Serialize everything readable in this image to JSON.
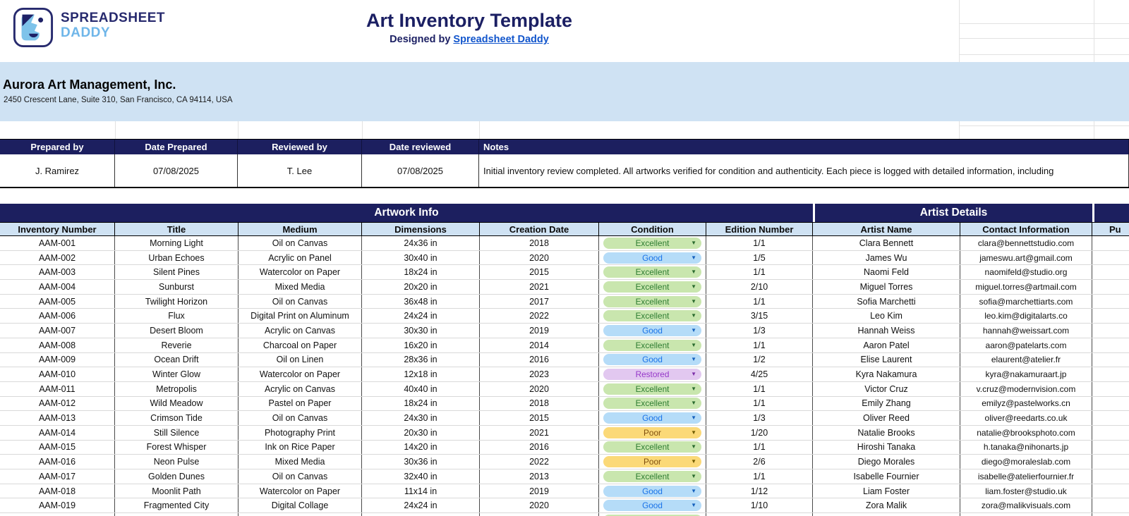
{
  "brand": {
    "line1": "SPREADSHEET",
    "line2": "DADDY",
    "logo_icon": "face-logo-icon"
  },
  "header": {
    "title": "Art Inventory Template",
    "subtitle_prefix": "Designed by ",
    "subtitle_link": "Spreadsheet Daddy"
  },
  "company": {
    "name": "Aurora Art Management, Inc.",
    "address": "2450 Crescent Lane, Suite 310, San Francisco, CA 94114, USA"
  },
  "review": {
    "headers": [
      "Prepared by",
      "Date Prepared",
      "Reviewed by",
      "Date reviewed",
      "Notes"
    ],
    "prepared_by": "J. Ramirez",
    "date_prepared": "07/08/2025",
    "reviewed_by": "T. Lee",
    "date_reviewed": "07/08/2025",
    "notes": "Initial inventory review completed. All artworks verified for condition and authenticity. Each piece is logged with detailed information, including"
  },
  "inventory": {
    "group_headers": [
      "Artwork Info",
      "Artist Details"
    ],
    "columns": [
      "Inventory Number",
      "Title",
      "Medium",
      "Dimensions",
      "Creation Date",
      "Condition",
      "Edition Number",
      "Artist Name",
      "Contact Information",
      "Pu"
    ],
    "condition_colors": {
      "Excellent": {
        "bg": "#c9e6ae",
        "text": "#2e7d32"
      },
      "Good": {
        "bg": "#b5dcf8",
        "text": "#1a73e8"
      },
      "Restored": {
        "bg": "#e2c8f0",
        "text": "#9638c9"
      },
      "Poor": {
        "bg": "#fbd978",
        "text": "#7f4f0f"
      }
    },
    "rows": [
      {
        "inv": "AAM-001",
        "title": "Morning Light",
        "medium": "Oil on Canvas",
        "dims": "24x36 in",
        "created": "2018",
        "condition": "Excellent",
        "edition": "1/1",
        "artist": "Clara Bennett",
        "contact": "clara@bennettstudio.com"
      },
      {
        "inv": "AAM-002",
        "title": "Urban Echoes",
        "medium": "Acrylic on Panel",
        "dims": "30x40 in",
        "created": "2020",
        "condition": "Good",
        "edition": "1/5",
        "artist": "James Wu",
        "contact": "jameswu.art@gmail.com"
      },
      {
        "inv": "AAM-003",
        "title": "Silent Pines",
        "medium": "Watercolor on Paper",
        "dims": "18x24 in",
        "created": "2015",
        "condition": "Excellent",
        "edition": "1/1",
        "artist": "Naomi Feld",
        "contact": "naomifeld@studio.org"
      },
      {
        "inv": "AAM-004",
        "title": "Sunburst",
        "medium": "Mixed Media",
        "dims": "20x20 in",
        "created": "2021",
        "condition": "Excellent",
        "edition": "2/10",
        "artist": "Miguel Torres",
        "contact": "miguel.torres@artmail.com"
      },
      {
        "inv": "AAM-005",
        "title": "Twilight Horizon",
        "medium": "Oil on Canvas",
        "dims": "36x48 in",
        "created": "2017",
        "condition": "Excellent",
        "edition": "1/1",
        "artist": "Sofia Marchetti",
        "contact": "sofia@marchettiarts.com"
      },
      {
        "inv": "AAM-006",
        "title": "Flux",
        "medium": "Digital Print on Aluminum",
        "dims": "24x24 in",
        "created": "2022",
        "condition": "Excellent",
        "edition": "3/15",
        "artist": "Leo Kim",
        "contact": "leo.kim@digitalarts.co"
      },
      {
        "inv": "AAM-007",
        "title": "Desert Bloom",
        "medium": "Acrylic on Canvas",
        "dims": "30x30 in",
        "created": "2019",
        "condition": "Good",
        "edition": "1/3",
        "artist": "Hannah Weiss",
        "contact": "hannah@weissart.com"
      },
      {
        "inv": "AAM-008",
        "title": "Reverie",
        "medium": "Charcoal on Paper",
        "dims": "16x20 in",
        "created": "2014",
        "condition": "Excellent",
        "edition": "1/1",
        "artist": "Aaron Patel",
        "contact": "aaron@patelarts.com"
      },
      {
        "inv": "AAM-009",
        "title": "Ocean Drift",
        "medium": "Oil on Linen",
        "dims": "28x36 in",
        "created": "2016",
        "condition": "Good",
        "edition": "1/2",
        "artist": "Elise Laurent",
        "contact": "elaurent@atelier.fr"
      },
      {
        "inv": "AAM-010",
        "title": "Winter Glow",
        "medium": "Watercolor on Paper",
        "dims": "12x18 in",
        "created": "2023",
        "condition": "Restored",
        "edition": "4/25",
        "artist": "Kyra Nakamura",
        "contact": "kyra@nakamuraart.jp"
      },
      {
        "inv": "AAM-011",
        "title": "Metropolis",
        "medium": "Acrylic on Canvas",
        "dims": "40x40 in",
        "created": "2020",
        "condition": "Excellent",
        "edition": "1/1",
        "artist": "Victor Cruz",
        "contact": "v.cruz@modernvision.com"
      },
      {
        "inv": "AAM-012",
        "title": "Wild Meadow",
        "medium": "Pastel on Paper",
        "dims": "18x24 in",
        "created": "2018",
        "condition": "Excellent",
        "edition": "1/1",
        "artist": "Emily Zhang",
        "contact": "emilyz@pastelworks.cn"
      },
      {
        "inv": "AAM-013",
        "title": "Crimson Tide",
        "medium": "Oil on Canvas",
        "dims": "24x30 in",
        "created": "2015",
        "condition": "Good",
        "edition": "1/3",
        "artist": "Oliver Reed",
        "contact": "oliver@reedarts.co.uk"
      },
      {
        "inv": "AAM-014",
        "title": "Still Silence",
        "medium": "Photography Print",
        "dims": "20x30 in",
        "created": "2021",
        "condition": "Poor",
        "edition": "1/20",
        "artist": "Natalie Brooks",
        "contact": "natalie@brooksphoto.com"
      },
      {
        "inv": "AAM-015",
        "title": "Forest Whisper",
        "medium": "Ink on Rice Paper",
        "dims": "14x20 in",
        "created": "2016",
        "condition": "Excellent",
        "edition": "1/1",
        "artist": "Hiroshi Tanaka",
        "contact": "h.tanaka@nihonarts.jp"
      },
      {
        "inv": "AAM-016",
        "title": "Neon Pulse",
        "medium": "Mixed Media",
        "dims": "30x36 in",
        "created": "2022",
        "condition": "Poor",
        "edition": "2/6",
        "artist": "Diego Morales",
        "contact": "diego@moraleslab.com"
      },
      {
        "inv": "AAM-017",
        "title": "Golden Dunes",
        "medium": "Oil on Canvas",
        "dims": "32x40 in",
        "created": "2013",
        "condition": "Excellent",
        "edition": "1/1",
        "artist": "Isabelle Fournier",
        "contact": "isabelle@atelierfournier.fr"
      },
      {
        "inv": "AAM-018",
        "title": "Moonlit Path",
        "medium": "Watercolor on Paper",
        "dims": "11x14 in",
        "created": "2019",
        "condition": "Good",
        "edition": "1/12",
        "artist": "Liam Foster",
        "contact": "liam.foster@studio.uk"
      },
      {
        "inv": "AAM-019",
        "title": "Fragmented City",
        "medium": "Digital Collage",
        "dims": "24x24 in",
        "created": "2020",
        "condition": "Good",
        "edition": "1/10",
        "artist": "Zora Malik",
        "contact": "zora@malikvisuals.com"
      }
    ],
    "partial_row_condition": "Excellent"
  },
  "colors": {
    "navy_header": "#1c1f5f",
    "light_blue_band": "#cfe2f3",
    "link_blue": "#1155cc",
    "brand_navy": "#272a6e",
    "brand_light_blue": "#6fb6e9"
  }
}
